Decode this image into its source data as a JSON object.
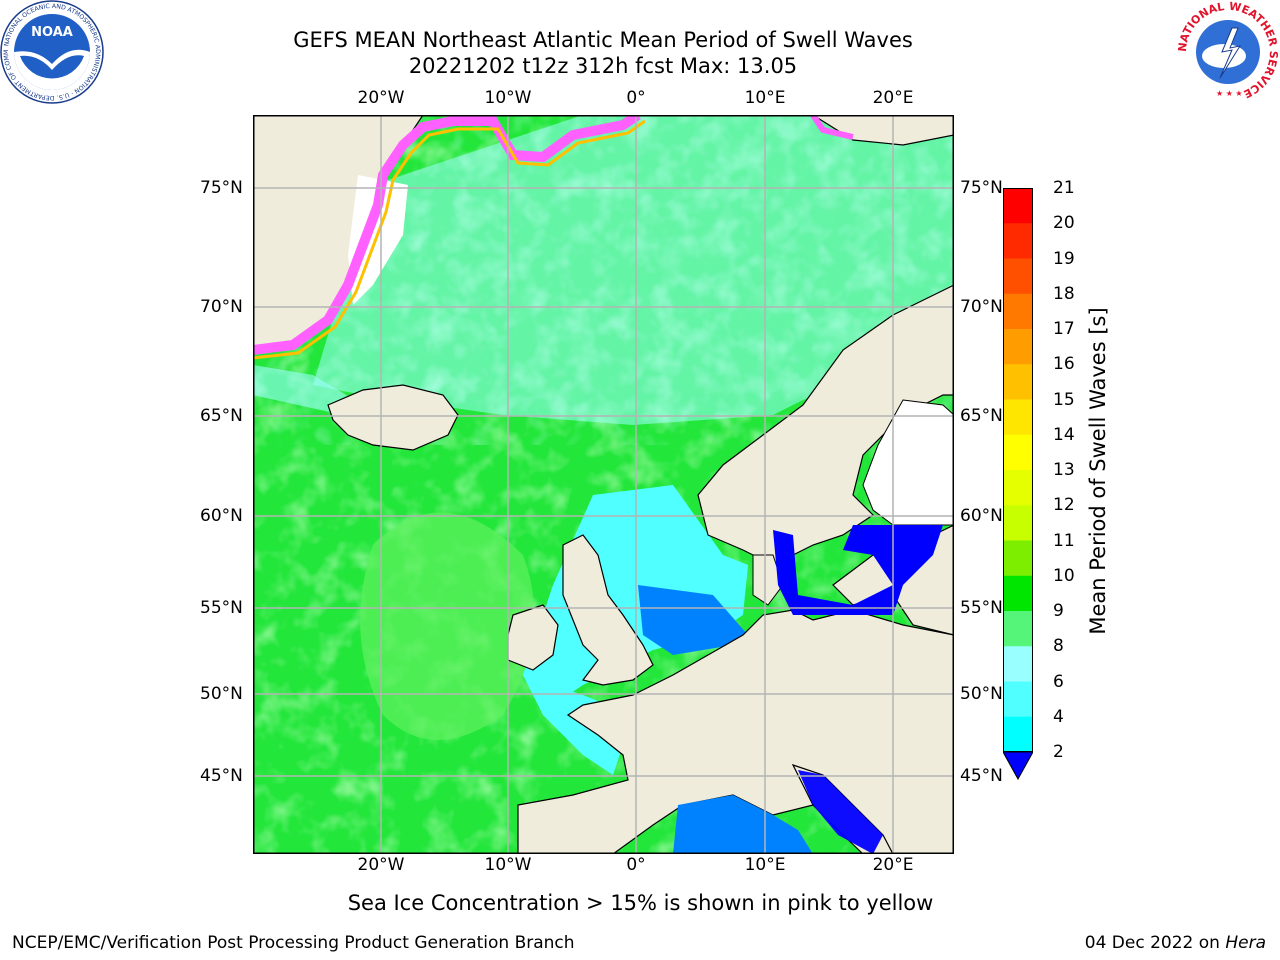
{
  "title": "GEFS MEAN Northeast Atlantic Mean Period of Swell Waves",
  "subtitle": "20221202 t12z 312h fcst   Max: 13.05",
  "lon_labels": [
    "20°W",
    "10°W",
    "0°",
    "10°E",
    "20°E"
  ],
  "lat_labels": [
    "75°N",
    "70°N",
    "65°N",
    "60°N",
    "55°N",
    "50°N",
    "45°N"
  ],
  "colorbar": {
    "label": "Mean Period of Swell Waves [s]",
    "ticks": [
      "21",
      "20",
      "19",
      "18",
      "17",
      "16",
      "15",
      "14",
      "13",
      "12",
      "11",
      "10",
      "9",
      "8",
      "6",
      "4",
      "2"
    ],
    "colors": [
      "#ff0000",
      "#ff2a00",
      "#ff5000",
      "#ff7800",
      "#ff9c00",
      "#ffc000",
      "#ffe600",
      "#ffff00",
      "#e6ff00",
      "#c8ff00",
      "#7dee00",
      "#00e600",
      "#55f57a",
      "#9affff",
      "#50ffff",
      "#00ffff",
      "#0082ff",
      "#0000ff"
    ],
    "under_color": "#0000ff"
  },
  "footnote": "Sea Ice Concentration > 15% is shown in pink to yellow",
  "credit": "NCEP/EMC/Verification Post Processing Product Generation Branch",
  "date_text": "04 Dec 2022 on ",
  "date_host": "Hera",
  "logos": {
    "noaa_text": "NOAA",
    "noaa_ring": "NATIONAL OCEANIC AND ATMOSPHERIC ADMINISTRATION · U.S. DEPARTMENT OF COMMERCE",
    "nws_ring": "NATIONAL WEATHER SERVICE"
  },
  "map_colors": {
    "land": "#efecdc",
    "ocean_swell": "#22e63a",
    "ocean_long": "#5ef15e",
    "ocean_short": "#9affff",
    "coastal": "#50ffff",
    "shelf": "#0082ff",
    "enclosed": "#0000ff",
    "ice": "#ff60ff",
    "ice_edge": "#ffc000",
    "grid": "#b4b4b4"
  },
  "chart_data": {
    "type": "map",
    "variable": "Mean Period of Swell Waves [s]",
    "max_value": 13.05,
    "lon_range": [
      -30,
      24
    ],
    "lat_range": [
      41,
      78
    ]
  }
}
